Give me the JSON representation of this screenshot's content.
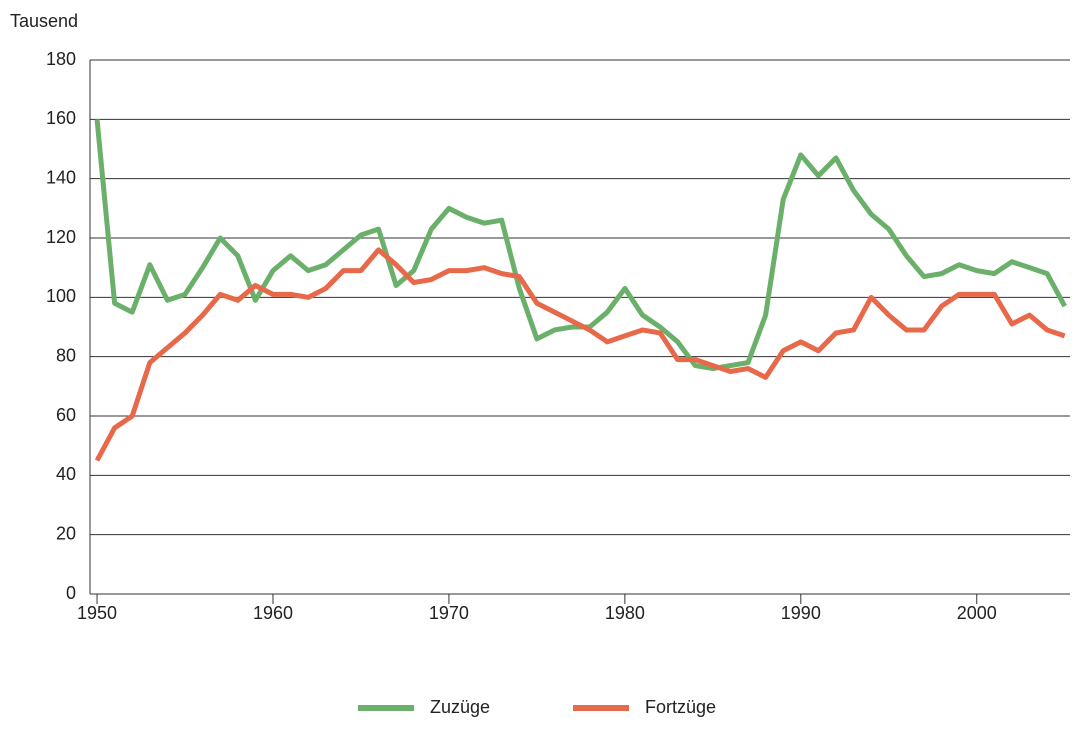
{
  "chart_data": {
    "type": "line",
    "y_label": "Tausend",
    "x": [
      1950,
      1951,
      1952,
      1953,
      1954,
      1955,
      1956,
      1957,
      1958,
      1959,
      1960,
      1961,
      1962,
      1963,
      1964,
      1965,
      1966,
      1967,
      1968,
      1969,
      1970,
      1971,
      1972,
      1973,
      1974,
      1975,
      1976,
      1977,
      1978,
      1979,
      1980,
      1981,
      1982,
      1983,
      1984,
      1985,
      1986,
      1987,
      1988,
      1989,
      1990,
      1991,
      1992,
      1993,
      1994,
      1995,
      1996,
      1997,
      1998,
      1999,
      2000,
      2001,
      2002,
      2003,
      2004,
      2005
    ],
    "series": [
      {
        "name": "Zuzüge",
        "color": "#6ab06a",
        "values": [
          160,
          98,
          95,
          111,
          99,
          101,
          110,
          120,
          114,
          99,
          109,
          114,
          109,
          111,
          116,
          121,
          123,
          104,
          109,
          123,
          130,
          127,
          125,
          126,
          103,
          86,
          89,
          90,
          90,
          95,
          103,
          94,
          90,
          85,
          77,
          76,
          77,
          78,
          94,
          133,
          148,
          141,
          147,
          136,
          128,
          123,
          114,
          107,
          108,
          111,
          109,
          108,
          112,
          110,
          108,
          97
        ]
      },
      {
        "name": "Fortzüge",
        "color": "#e8684a",
        "values": [
          45,
          56,
          60,
          78,
          83,
          88,
          94,
          101,
          99,
          104,
          101,
          101,
          100,
          103,
          109,
          109,
          116,
          111,
          105,
          106,
          109,
          109,
          110,
          108,
          107,
          98,
          95,
          92,
          89,
          85,
          87,
          89,
          88,
          79,
          79,
          77,
          75,
          76,
          73,
          82,
          85,
          82,
          88,
          89,
          100,
          94,
          89,
          89,
          97,
          101,
          101,
          101,
          91,
          94,
          89,
          87
        ]
      }
    ],
    "xlim": [
      1949.6,
      2005.3
    ],
    "xticks": [
      1950,
      1960,
      1970,
      1980,
      1990,
      2000
    ],
    "ylim": [
      0,
      180
    ],
    "yticks": [
      0,
      20,
      40,
      60,
      80,
      100,
      120,
      140,
      160,
      180
    ],
    "grid": true
  }
}
